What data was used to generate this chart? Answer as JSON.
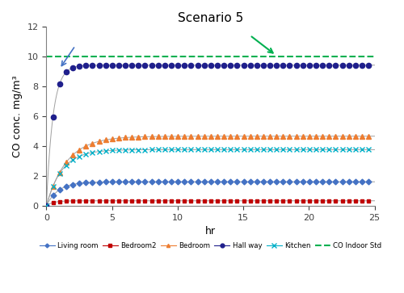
{
  "title": "Scenario 5",
  "xlabel": "hr",
  "ylabel": "CO conc. mg/m³",
  "xlim": [
    0,
    25
  ],
  "ylim": [
    0,
    12
  ],
  "yticks": [
    0,
    2,
    4,
    6,
    8,
    10,
    12
  ],
  "xticks": [
    0,
    5,
    10,
    15,
    20,
    25
  ],
  "co_std": 10.0,
  "bg_color": "#f0f0f0",
  "series": {
    "Living room": {
      "color": "#4472C4",
      "marker": "D",
      "asymptote": 1.6,
      "rate": 1.1,
      "markersize": 3.5,
      "markevery": 12
    },
    "Bedroom2": {
      "color": "#C00000",
      "marker": "s",
      "asymptote": 0.33,
      "rate": 2.0,
      "markersize": 3.5,
      "markevery": 12
    },
    "Bedroom": {
      "color": "#ED7D31",
      "marker": "^",
      "asymptote": 4.65,
      "rate": 0.65,
      "markersize": 4.0,
      "markevery": 12
    },
    "Hall way": {
      "color": "#1F1F8C",
      "marker": "o",
      "asymptote": 9.4,
      "rate": 2.0,
      "markersize": 4.5,
      "markevery": 12
    },
    "Kitchen": {
      "color": "#00B0C8",
      "marker": "x",
      "asymptote": 3.75,
      "rate": 0.85,
      "markersize": 5.0,
      "markevery": 12
    }
  }
}
